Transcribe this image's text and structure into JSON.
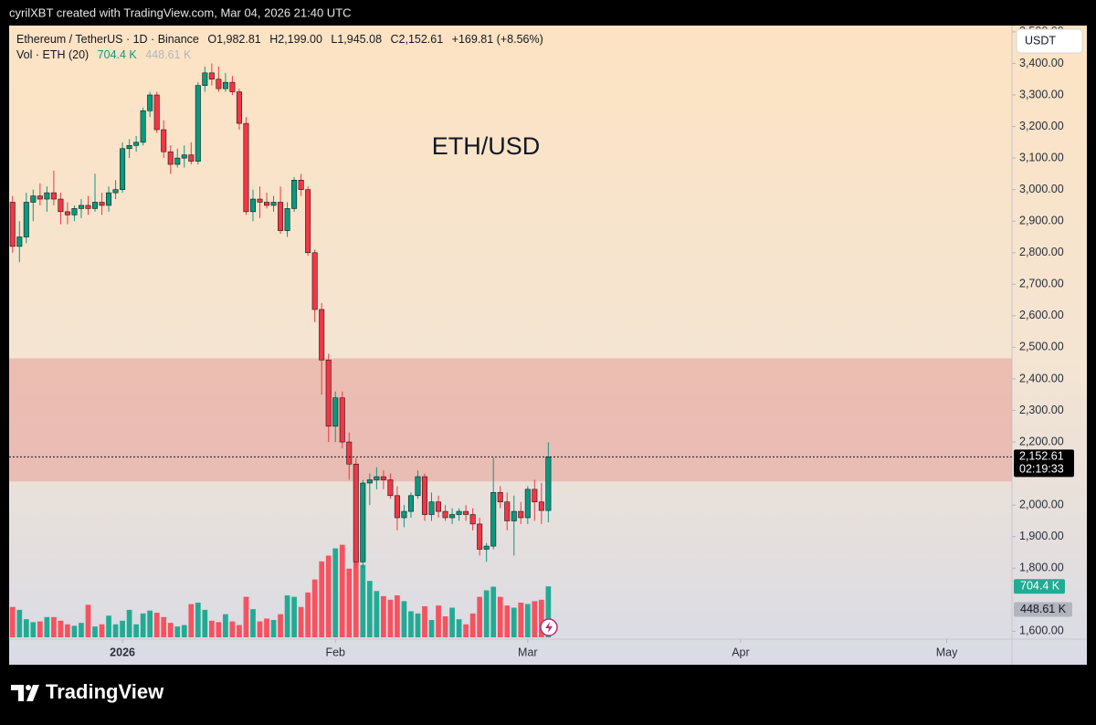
{
  "chart_data": {
    "type": "candlestick",
    "attribution": "cyrilXBT created with TradingView.com, Mar 04, 2026 21:40 UTC",
    "legend_text": {
      "symbol": "Ethereum / TetherUS · 1D · Binance",
      "open": "O1,982.81",
      "high": "H2,199.00",
      "low": "L1,945.08",
      "close": "C2,152.61",
      "change": "+169.81 (+8.56%)"
    },
    "volume_legend": {
      "name": "Vol · ETH (20)",
      "volume": "704.4 K",
      "ma": "448.61 K"
    },
    "watermark": "ETH/USD",
    "currency": "USDT",
    "brand": "TradingView",
    "up_color": "#089981",
    "down_color": "#f23645",
    "volume_up_color": "#22ab94",
    "volume_down_color": "#f7525f",
    "zone": [
      2075,
      2465
    ],
    "zone_color": "#e8a39b",
    "last_price": {
      "value": 2152.61,
      "label": "2,152.61",
      "countdown": "02:19:33"
    },
    "volume_labels": {
      "volume": {
        "value": 704.4,
        "label": "704.4 K"
      },
      "ma": {
        "value": 448.61,
        "label": "448.61 K"
      }
    },
    "xlim": [
      0,
      146
    ],
    "xticks": [
      {
        "value": 16,
        "label": "2026"
      },
      {
        "value": 47,
        "label": "Feb"
      },
      {
        "value": 75,
        "label": "Mar"
      },
      {
        "value": 106,
        "label": "Apr"
      },
      {
        "value": 136,
        "label": "May"
      }
    ],
    "ylim": [
      1575,
      3520
    ],
    "yticks": [
      {
        "value": 1600,
        "label": "1,600.00"
      },
      {
        "value": 1800,
        "label": "1,800.00"
      },
      {
        "value": 1900,
        "label": "1,900.00"
      },
      {
        "value": 2000,
        "label": "2,000.00"
      },
      {
        "value": 2200,
        "label": "2,200.00"
      },
      {
        "value": 2300,
        "label": "2,300.00"
      },
      {
        "value": 2400,
        "label": "2,400.00"
      },
      {
        "value": 2500,
        "label": "2,500.00"
      },
      {
        "value": 2600,
        "label": "2,600.00"
      },
      {
        "value": 2700,
        "label": "2,700.00"
      },
      {
        "value": 2800,
        "label": "2,800.00"
      },
      {
        "value": 2900,
        "label": "2,900.00"
      },
      {
        "value": 3000,
        "label": "3,000.00"
      },
      {
        "value": 3100,
        "label": "3,100.00"
      },
      {
        "value": 3200,
        "label": "3,200.00"
      },
      {
        "value": 3300,
        "label": "3,300.00"
      },
      {
        "value": 3400,
        "label": "3,400.00"
      },
      {
        "value": 3500,
        "label": "3,500.00"
      }
    ],
    "volume_ylim": [
      0,
      1300
    ],
    "open": [
      2960,
      2820,
      2850,
      2960,
      2980,
      2970,
      2990,
      2970,
      2930,
      2920,
      2940,
      2950,
      2940,
      2960,
      2950,
      2990,
      3000,
      3130,
      3140,
      3150,
      3250,
      3300,
      3190,
      3120,
      3080,
      3100,
      3110,
      3090,
      3330,
      3370,
      3350,
      3320,
      3340,
      3310,
      3210,
      2930,
      2970,
      2960,
      2950,
      2960,
      2870,
      2940,
      3030,
      3000,
      2800,
      2620,
      2460,
      2250,
      2340,
      2200,
      2130,
      1820,
      2070,
      2080,
      2090,
      2080,
      2030,
      1960,
      1980,
      2030,
      2090,
      1970,
      2010,
      1980,
      1960,
      1970,
      1980,
      1970,
      1940,
      1860,
      1870,
      2040,
      2010,
      1950,
      1980,
      1960,
      2050,
      2010,
      1982.81
    ],
    "high": [
      2980,
      2900,
      2990,
      3000,
      3020,
      3010,
      3060,
      2990,
      2960,
      2950,
      2970,
      2980,
      3050,
      2990,
      3010,
      3030,
      3150,
      3160,
      3170,
      3260,
      3310,
      3310,
      3220,
      3140,
      3130,
      3140,
      3150,
      3340,
      3390,
      3400,
      3390,
      3370,
      3360,
      3320,
      3230,
      3000,
      3010,
      2990,
      2980,
      3010,
      2960,
      3040,
      3050,
      3010,
      2810,
      2640,
      2480,
      2360,
      2360,
      2230,
      2150,
      2080,
      2100,
      2120,
      2110,
      2100,
      2060,
      2000,
      2040,
      2110,
      2100,
      2040,
      2030,
      2000,
      1990,
      1990,
      2000,
      1990,
      1960,
      1880,
      2150,
      2060,
      2040,
      2030,
      2010,
      2060,
      2080,
      2070,
      2199.0
    ],
    "low": [
      2800,
      2770,
      2830,
      2900,
      2950,
      2930,
      2950,
      2890,
      2890,
      2900,
      2910,
      2920,
      2930,
      2920,
      2930,
      2970,
      2990,
      3100,
      3120,
      3140,
      3230,
      3180,
      3100,
      3050,
      3070,
      3070,
      3080,
      3080,
      3310,
      3330,
      3310,
      3310,
      3300,
      3190,
      2920,
      2900,
      2910,
      2940,
      2930,
      2860,
      2850,
      2930,
      2980,
      2790,
      2580,
      2350,
      2200,
      2200,
      2180,
      2080,
      1800,
      1800,
      2000,
      2050,
      2050,
      2020,
      1920,
      1930,
      1960,
      2020,
      1950,
      1950,
      1960,
      1950,
      1940,
      1950,
      1950,
      1920,
      1840,
      1820,
      1860,
      1990,
      1920,
      1840,
      1940,
      1940,
      1950,
      1940,
      1945.08
    ],
    "close": [
      2820,
      2850,
      2960,
      2980,
      2970,
      2990,
      2970,
      2930,
      2920,
      2940,
      2950,
      2940,
      2960,
      2950,
      2990,
      3000,
      3130,
      3140,
      3150,
      3250,
      3300,
      3190,
      3120,
      3080,
      3100,
      3110,
      3090,
      3330,
      3370,
      3350,
      3320,
      3340,
      3310,
      3210,
      2930,
      2970,
      2960,
      2950,
      2960,
      2870,
      2940,
      3030,
      3000,
      2800,
      2620,
      2460,
      2250,
      2340,
      2200,
      2130,
      1820,
      2070,
      2080,
      2090,
      2080,
      2030,
      1960,
      1980,
      2030,
      2090,
      1970,
      2010,
      1980,
      1960,
      1970,
      1980,
      1970,
      1940,
      1860,
      1870,
      2040,
      2010,
      1950,
      1980,
      1960,
      2050,
      2010,
      1983,
      2152.61
    ],
    "volume": [
      420,
      380,
      250,
      210,
      220,
      280,
      280,
      230,
      180,
      160,
      200,
      450,
      150,
      180,
      300,
      180,
      230,
      380,
      180,
      330,
      370,
      340,
      280,
      200,
      150,
      170,
      460,
      480,
      380,
      230,
      210,
      320,
      220,
      170,
      560,
      390,
      220,
      260,
      240,
      320,
      580,
      560,
      420,
      620,
      800,
      1050,
      1130,
      1230,
      1280,
      950,
      1200,
      1000,
      780,
      640,
      570,
      520,
      580,
      500,
      360,
      330,
      430,
      240,
      440,
      290,
      410,
      250,
      180,
      330,
      560,
      650,
      700,
      560,
      440,
      410,
      480,
      460,
      500,
      520,
      704.4
    ]
  }
}
